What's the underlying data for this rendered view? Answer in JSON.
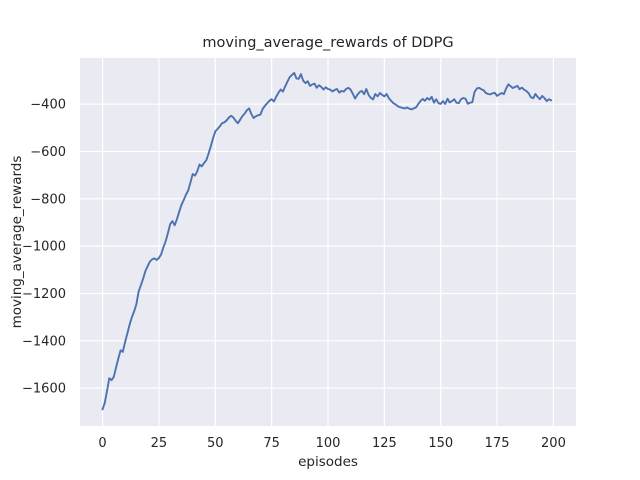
{
  "window": {
    "description": "matplotlib figure 640x480"
  },
  "chart_data": {
    "type": "line",
    "title": "moving_average_rewards of DDPG",
    "xlabel": "episodes",
    "ylabel": "moving_average_rewards",
    "x_ticks": [
      0,
      25,
      50,
      75,
      100,
      125,
      150,
      175,
      200
    ],
    "y_ticks": [
      -400,
      -600,
      -800,
      -1000,
      -1200,
      -1400,
      -1600
    ],
    "xlim": [
      -10,
      210
    ],
    "ylim": [
      -1760,
      -205
    ],
    "grid": true,
    "legend_position": "none",
    "colors": {
      "line": "#4c72b0",
      "axes_background": "#eaeaf2",
      "gridline": "#ffffff",
      "text": "#262626",
      "figure_background": "#ffffff"
    },
    "series": [
      {
        "name": "moving_average_rewards",
        "x_start": 0,
        "x_step": 1,
        "values": [
          -1690,
          -1662,
          -1610,
          -1558,
          -1566,
          -1552,
          -1512,
          -1475,
          -1440,
          -1447,
          -1405,
          -1370,
          -1332,
          -1300,
          -1276,
          -1245,
          -1192,
          -1165,
          -1138,
          -1105,
          -1085,
          -1065,
          -1056,
          -1052,
          -1058,
          -1050,
          -1034,
          -1005,
          -979,
          -945,
          -907,
          -894,
          -912,
          -886,
          -855,
          -825,
          -805,
          -782,
          -765,
          -730,
          -695,
          -702,
          -684,
          -655,
          -663,
          -649,
          -637,
          -610,
          -578,
          -545,
          -515,
          -505,
          -494,
          -481,
          -477,
          -469,
          -457,
          -449,
          -456,
          -470,
          -481,
          -466,
          -451,
          -440,
          -426,
          -418,
          -441,
          -459,
          -451,
          -447,
          -444,
          -421,
          -407,
          -397,
          -386,
          -379,
          -389,
          -370,
          -352,
          -338,
          -347,
          -325,
          -305,
          -286,
          -277,
          -268,
          -291,
          -293,
          -273,
          -301,
          -311,
          -303,
          -323,
          -317,
          -313,
          -331,
          -320,
          -327,
          -338,
          -329,
          -336,
          -339,
          -346,
          -340,
          -336,
          -351,
          -344,
          -347,
          -336,
          -331,
          -338,
          -356,
          -376,
          -361,
          -349,
          -344,
          -358,
          -336,
          -361,
          -373,
          -380,
          -357,
          -367,
          -353,
          -361,
          -367,
          -357,
          -375,
          -386,
          -396,
          -401,
          -409,
          -413,
          -416,
          -418,
          -414,
          -419,
          -422,
          -418,
          -414,
          -400,
          -387,
          -378,
          -386,
          -374,
          -381,
          -369,
          -394,
          -379,
          -396,
          -399,
          -387,
          -399,
          -377,
          -393,
          -387,
          -379,
          -394,
          -396,
          -379,
          -374,
          -377,
          -398,
          -394,
          -392,
          -349,
          -334,
          -331,
          -337,
          -341,
          -353,
          -357,
          -359,
          -354,
          -352,
          -365,
          -359,
          -353,
          -358,
          -334,
          -316,
          -324,
          -332,
          -327,
          -323,
          -337,
          -330,
          -339,
          -345,
          -354,
          -371,
          -375,
          -357,
          -370,
          -379,
          -365,
          -374,
          -387,
          -379,
          -384
        ]
      }
    ]
  }
}
